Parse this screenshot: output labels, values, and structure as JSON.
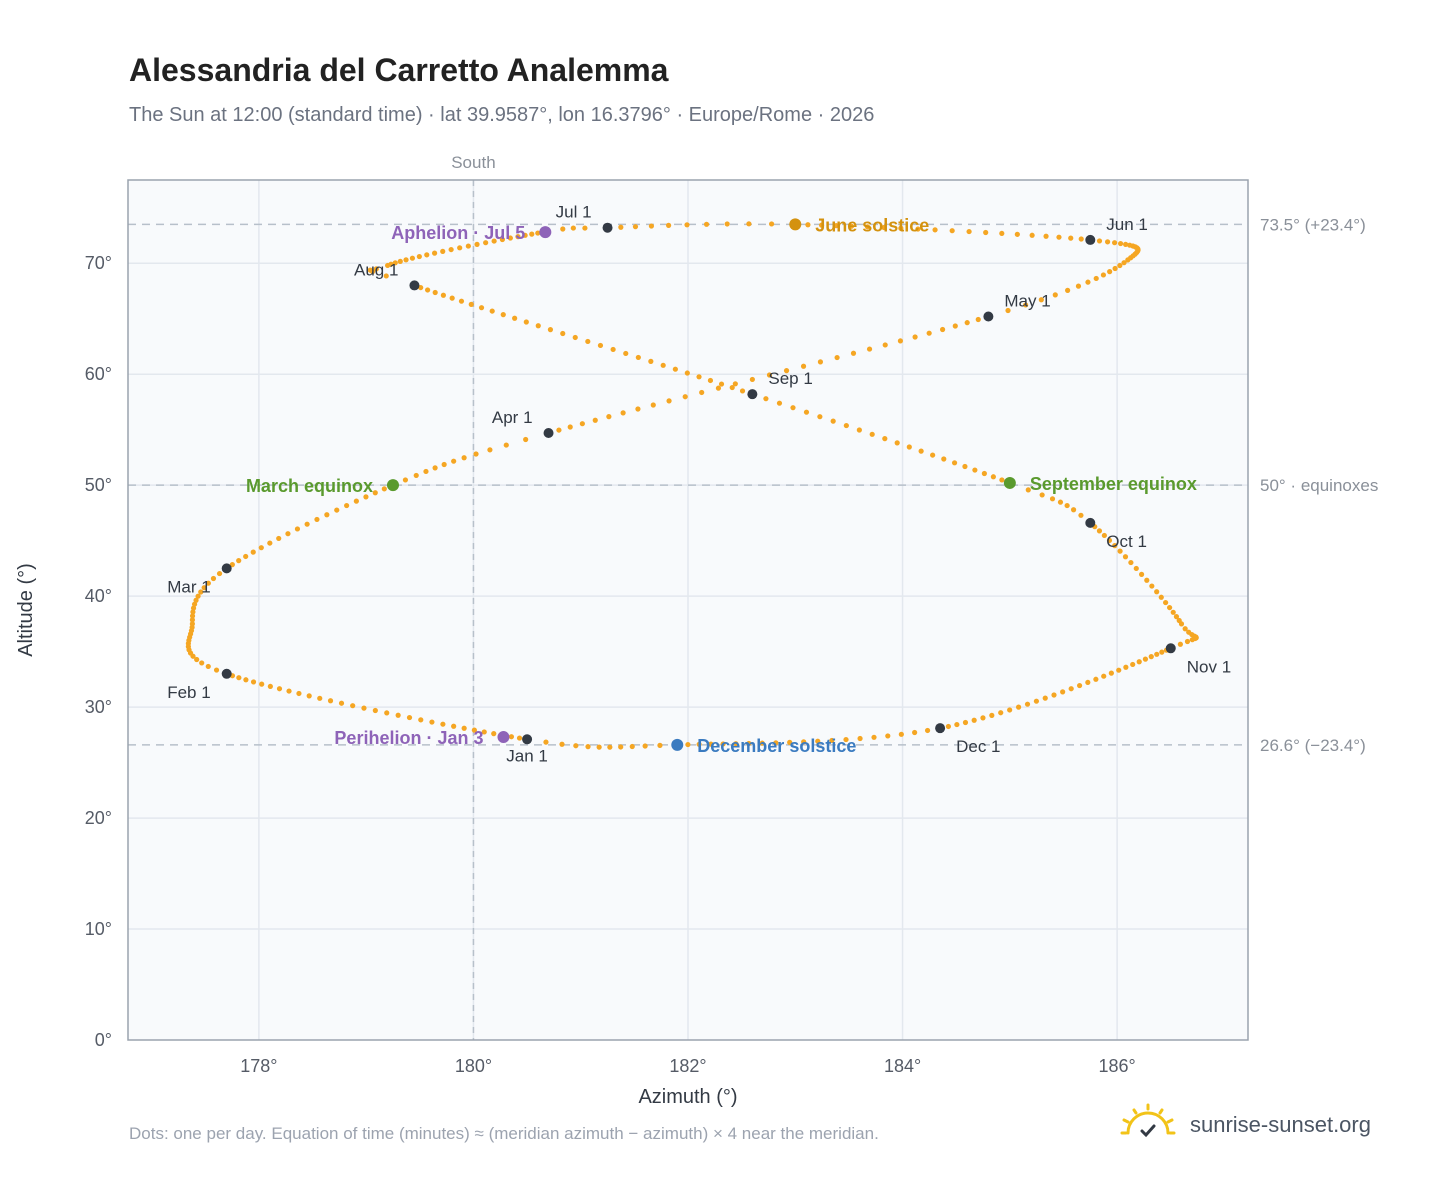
{
  "header": {
    "title": "Alessandria del Carretto Analemma",
    "subtitle": "The Sun at 12:00 (standard time) · lat 39.9587°, lon 16.3796° · Europe/Rome · 2026"
  },
  "footer": {
    "note": "Dots: one per day. Equation of time (minutes) ≈ (meridian azimuth − azimuth) × 4 near the meridian.",
    "brand": "sunrise-sunset.org"
  },
  "colors": {
    "analemma": "#f5a623",
    "month_marker": "#333a44",
    "june_solstice": "#d4920f",
    "equinox": "#5a9a2e",
    "december_solstice": "#3b7bc0",
    "apsis": "#8e63b8",
    "plot_bg": "#f8fafc",
    "grid": "#e3e8ee",
    "reference_line": "#b7c0ca",
    "brand_sun": "#f2c318"
  },
  "chart_data": {
    "type": "scatter",
    "title": "Alessandria del Carretto Analemma",
    "xlabel": "Azimuth (°)",
    "ylabel": "Altitude (°)",
    "xlim": [
      176.78,
      187.22
    ],
    "ylim": [
      0,
      77.5
    ],
    "xticks": [
      178,
      180,
      182,
      184,
      186
    ],
    "xtick_labels": [
      "178°",
      "180°",
      "182°",
      "184°",
      "186°"
    ],
    "yticks": [
      0,
      10,
      20,
      30,
      40,
      50,
      60,
      70
    ],
    "ytick_labels": [
      "0°",
      "10°",
      "20°",
      "30°",
      "40°",
      "50°",
      "60°",
      "70°"
    ],
    "grid": true,
    "meridian": {
      "azimuth": 180,
      "label": "South"
    },
    "reference_lines": [
      {
        "altitude": 73.5,
        "label": "73.5° (+23.4°)"
      },
      {
        "altitude": 50,
        "label": "50° · equinoxes"
      },
      {
        "altitude": 26.6,
        "label": "26.6° (−23.4°)"
      }
    ],
    "series": [
      {
        "name": "",
        "daily_points": true,
        "anchors": [
          {
            "day": 1,
            "az": 180.5,
            "alt": 27.1
          },
          {
            "day": 32,
            "az": 177.7,
            "alt": 33.0
          },
          {
            "day": 47,
            "az": 177.38,
            "alt": 37.5
          },
          {
            "day": 60,
            "az": 177.7,
            "alt": 42.5
          },
          {
            "day": 79,
            "az": 179.25,
            "alt": 50.0
          },
          {
            "day": 91,
            "az": 180.7,
            "alt": 54.7
          },
          {
            "day": 121,
            "az": 184.8,
            "alt": 65.2
          },
          {
            "day": 135,
            "az": 186.1,
            "alt": 70.3
          },
          {
            "day": 152,
            "az": 185.75,
            "alt": 72.1
          },
          {
            "day": 172,
            "az": 183.0,
            "alt": 73.5
          },
          {
            "day": 182,
            "az": 181.25,
            "alt": 73.2
          },
          {
            "day": 186,
            "az": 180.65,
            "alt": 72.8
          },
          {
            "day": 208,
            "az": 179.2,
            "alt": 69.8
          },
          {
            "day": 213,
            "az": 179.45,
            "alt": 68.0
          },
          {
            "day": 244,
            "az": 182.6,
            "alt": 58.2
          },
          {
            "day": 266,
            "az": 185.0,
            "alt": 50.2
          },
          {
            "day": 274,
            "az": 185.75,
            "alt": 46.6
          },
          {
            "day": 294,
            "az": 186.6,
            "alt": 37.5
          },
          {
            "day": 305,
            "az": 186.5,
            "alt": 35.3
          },
          {
            "day": 335,
            "az": 184.35,
            "alt": 28.1
          },
          {
            "day": 355,
            "az": 181.9,
            "alt": 26.6
          },
          {
            "day": 366,
            "az": 180.5,
            "alt": 27.1
          }
        ]
      }
    ],
    "month_markers": [
      {
        "label": "Jan 1",
        "az": 180.5,
        "alt": 27.1,
        "anchor": "below"
      },
      {
        "label": "Feb 1",
        "az": 177.7,
        "alt": 33.0,
        "anchor": "below-left"
      },
      {
        "label": "Mar 1",
        "az": 177.7,
        "alt": 42.5,
        "anchor": "below-left"
      },
      {
        "label": "Apr 1",
        "az": 180.7,
        "alt": 54.7,
        "anchor": "above-left"
      },
      {
        "label": "May 1",
        "az": 184.8,
        "alt": 65.2,
        "anchor": "above-right"
      },
      {
        "label": "Jun 1",
        "az": 185.75,
        "alt": 72.1,
        "anchor": "above-right"
      },
      {
        "label": "Jul 1",
        "az": 181.25,
        "alt": 73.2,
        "anchor": "above-left"
      },
      {
        "label": "Aug 1",
        "az": 179.45,
        "alt": 68.0,
        "anchor": "above-left"
      },
      {
        "label": "Sep 1",
        "az": 182.6,
        "alt": 58.2,
        "anchor": "above-right"
      },
      {
        "label": "Oct 1",
        "az": 185.75,
        "alt": 46.6,
        "anchor": "below-right"
      },
      {
        "label": "Nov 1",
        "az": 186.5,
        "alt": 35.3,
        "anchor": "below-right"
      },
      {
        "label": "Dec 1",
        "az": 184.35,
        "alt": 28.1,
        "anchor": "below-right"
      }
    ],
    "events": [
      {
        "label": "June solstice",
        "az": 183.0,
        "alt": 73.5,
        "color": "#d4920f",
        "side": "right"
      },
      {
        "label": "March equinox",
        "az": 179.25,
        "alt": 50.0,
        "color": "#5a9a2e",
        "side": "left"
      },
      {
        "label": "September equinox",
        "az": 185.0,
        "alt": 50.2,
        "color": "#5a9a2e",
        "side": "right"
      },
      {
        "label": "December solstice",
        "az": 181.9,
        "alt": 26.6,
        "color": "#3b7bc0",
        "side": "right"
      },
      {
        "label": "Aphelion · Jul 5",
        "az": 180.67,
        "alt": 72.8,
        "color": "#8e63b8",
        "side": "left"
      },
      {
        "label": "Perihelion · Jan 3",
        "az": 180.28,
        "alt": 27.3,
        "color": "#8e63b8",
        "side": "left"
      }
    ]
  }
}
